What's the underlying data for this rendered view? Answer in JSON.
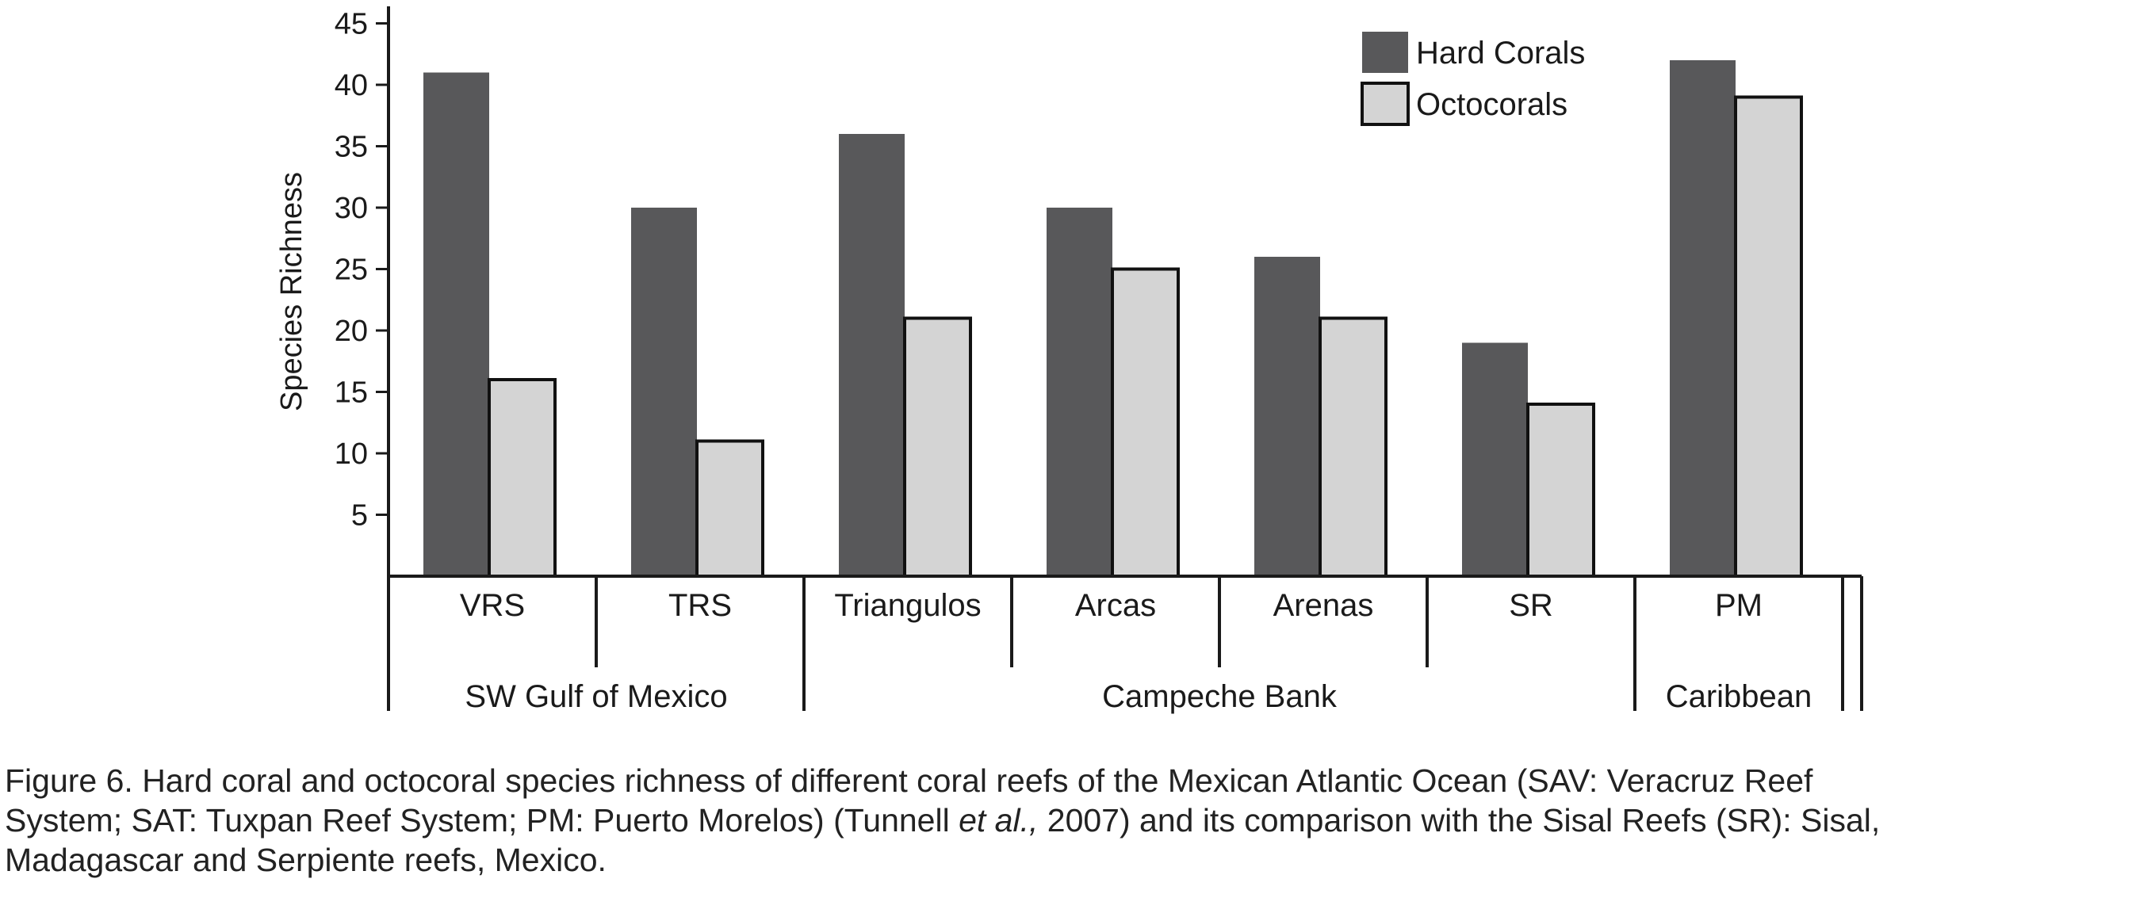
{
  "chart_data": {
    "type": "bar",
    "title": "",
    "xlabel": "",
    "ylabel": "Species Richness",
    "ylim": [
      0,
      45
    ],
    "yticks": [
      5,
      10,
      15,
      20,
      25,
      30,
      35,
      40,
      45
    ],
    "categories": [
      "VRS",
      "TRS",
      "Triangulos",
      "Arcas",
      "Arenas",
      "SR",
      "PM"
    ],
    "groups": [
      {
        "label": "SW Gulf of Mexico",
        "categories": [
          "VRS",
          "TRS"
        ]
      },
      {
        "label": "Campeche Bank",
        "categories": [
          "Triangulos",
          "Arcas",
          "Arenas",
          "SR"
        ]
      },
      {
        "label": "Caribbean",
        "categories": [
          "PM"
        ]
      }
    ],
    "series": [
      {
        "name": "Hard Corals",
        "color": "#58585a",
        "values": [
          41,
          30,
          36,
          30,
          26,
          19,
          42
        ]
      },
      {
        "name": "Octocorals",
        "color": "#d4d4d4",
        "values": [
          16,
          11,
          21,
          25,
          21,
          14,
          39
        ]
      }
    ],
    "legend_position": "top-right"
  },
  "caption": {
    "line1": "Figure 6. Hard coral and octocoral species richness of different coral reefs of the Mexican Atlantic Ocean (SAV: Veracruz Reef",
    "line2_a": "System; SAT: Tuxpan Reef System; PM: Puerto Morelos) (Tunnell ",
    "line2_italic": "et al.,",
    "line2_b": " 2007) and its comparison with the Sisal Reefs (SR): Sisal,",
    "line3": "Madagascar and Serpiente reefs, Mexico."
  }
}
